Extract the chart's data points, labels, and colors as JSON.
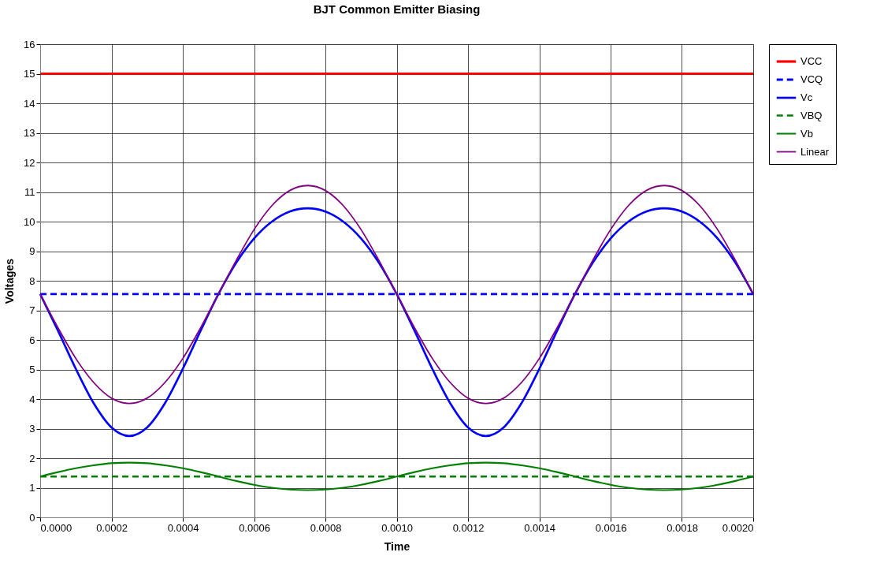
{
  "chart_data": {
    "type": "line",
    "title": "BJT Common Emitter Biasing",
    "xlabel": "Time",
    "ylabel": "Voltages",
    "x": [
      0,
      5e-05,
      0.0001,
      0.00015,
      0.0002,
      0.00025,
      0.0003,
      0.00035,
      0.0004,
      0.00045,
      0.0005,
      0.00055,
      0.0006,
      0.00065,
      0.0007,
      0.00075,
      0.0008,
      0.00085,
      0.0009,
      0.00095,
      0.001,
      0.00105,
      0.0011,
      0.00115,
      0.0012,
      0.00125,
      0.0013,
      0.00135,
      0.0014,
      0.00145,
      0.0015,
      0.00155,
      0.0016,
      0.00165,
      0.0017,
      0.00175,
      0.0018,
      0.00185,
      0.0019,
      0.00195,
      0.002
    ],
    "series": [
      {
        "name": "VCC",
        "color": "#ff0000",
        "line_style": "solid",
        "values": [
          15,
          15,
          15,
          15,
          15,
          15,
          15,
          15,
          15,
          15,
          15,
          15,
          15,
          15,
          15,
          15,
          15,
          15,
          15,
          15,
          15,
          15,
          15,
          15,
          15,
          15,
          15,
          15,
          15,
          15,
          15,
          15,
          15,
          15,
          15,
          15,
          15,
          15,
          15,
          15,
          15
        ]
      },
      {
        "name": "VCQ",
        "color": "#0000ff",
        "line_style": "dashed",
        "values": [
          7.55,
          7.55,
          7.55,
          7.55,
          7.55,
          7.55,
          7.55,
          7.55,
          7.55,
          7.55,
          7.55,
          7.55,
          7.55,
          7.55,
          7.55,
          7.55,
          7.55,
          7.55,
          7.55,
          7.55,
          7.55,
          7.55,
          7.55,
          7.55,
          7.55,
          7.55,
          7.55,
          7.55,
          7.55,
          7.55,
          7.55,
          7.55,
          7.55,
          7.55,
          7.55,
          7.55,
          7.55,
          7.55,
          7.55,
          7.55,
          7.55
        ]
      },
      {
        "name": "Vc",
        "color": "#0000ff",
        "line_style": "solid",
        "values": [
          7.55,
          6.31,
          5.02,
          3.86,
          3.04,
          2.75,
          3.04,
          3.86,
          5.02,
          6.31,
          7.55,
          8.61,
          9.43,
          10.0,
          10.34,
          10.45,
          10.34,
          10.0,
          9.43,
          8.61,
          7.55,
          6.31,
          5.02,
          3.86,
          3.04,
          2.75,
          3.04,
          3.86,
          5.02,
          6.31,
          7.55,
          8.61,
          9.43,
          10.0,
          10.34,
          10.45,
          10.34,
          10.0,
          9.43,
          8.61,
          7.55
        ]
      },
      {
        "name": "VBQ",
        "color": "#008000",
        "line_style": "dashed",
        "values": [
          1.38,
          1.38,
          1.38,
          1.38,
          1.38,
          1.38,
          1.38,
          1.38,
          1.38,
          1.38,
          1.38,
          1.38,
          1.38,
          1.38,
          1.38,
          1.38,
          1.38,
          1.38,
          1.38,
          1.38,
          1.38,
          1.38,
          1.38,
          1.38,
          1.38,
          1.38,
          1.38,
          1.38,
          1.38,
          1.38,
          1.38,
          1.38,
          1.38,
          1.38,
          1.38,
          1.38,
          1.38,
          1.38,
          1.38,
          1.38,
          1.38
        ]
      },
      {
        "name": "Vb",
        "color": "#008000",
        "line_style": "solid",
        "values": [
          1.38,
          1.53,
          1.66,
          1.76,
          1.83,
          1.85,
          1.83,
          1.76,
          1.66,
          1.53,
          1.38,
          1.23,
          1.1,
          1.0,
          0.94,
          0.92,
          0.94,
          1.0,
          1.1,
          1.23,
          1.38,
          1.53,
          1.66,
          1.76,
          1.83,
          1.85,
          1.83,
          1.76,
          1.66,
          1.53,
          1.38,
          1.23,
          1.1,
          1.0,
          0.94,
          0.92,
          0.94,
          1.0,
          1.1,
          1.23,
          1.38
        ]
      },
      {
        "name": "Linear",
        "color": "#800080",
        "line_style": "solid",
        "values": [
          7.55,
          6.41,
          5.37,
          4.56,
          4.03,
          3.85,
          4.03,
          4.56,
          5.37,
          6.41,
          7.55,
          8.69,
          9.73,
          10.54,
          11.05,
          11.22,
          11.05,
          10.54,
          9.73,
          8.69,
          7.55,
          6.41,
          5.37,
          4.56,
          4.03,
          3.85,
          4.03,
          4.56,
          5.37,
          6.41,
          7.55,
          8.69,
          9.73,
          10.54,
          11.05,
          11.22,
          11.05,
          10.54,
          9.73,
          8.69,
          7.55
        ]
      }
    ],
    "xlim": [
      0,
      0.002
    ],
    "xticks": [
      {
        "value": 0,
        "label": "0.0000"
      },
      {
        "value": 0.0002,
        "label": "0.0002"
      },
      {
        "value": 0.0004,
        "label": "0.0004"
      },
      {
        "value": 0.0006,
        "label": "0.0006"
      },
      {
        "value": 0.0008,
        "label": "0.0008"
      },
      {
        "value": 0.001,
        "label": "0.0010"
      },
      {
        "value": 0.0012,
        "label": "0.0012"
      },
      {
        "value": 0.0014,
        "label": "0.0014"
      },
      {
        "value": 0.0016,
        "label": "0.0016"
      },
      {
        "value": 0.0018,
        "label": "0.0018"
      },
      {
        "value": 0.002,
        "label": "0.0020"
      }
    ],
    "ylim": [
      0,
      16
    ],
    "yticks": [
      0,
      1,
      2,
      3,
      4,
      5,
      6,
      7,
      8,
      9,
      10,
      11,
      12,
      13,
      14,
      15,
      16
    ],
    "grid": true,
    "legend": "right",
    "marker": "none"
  }
}
